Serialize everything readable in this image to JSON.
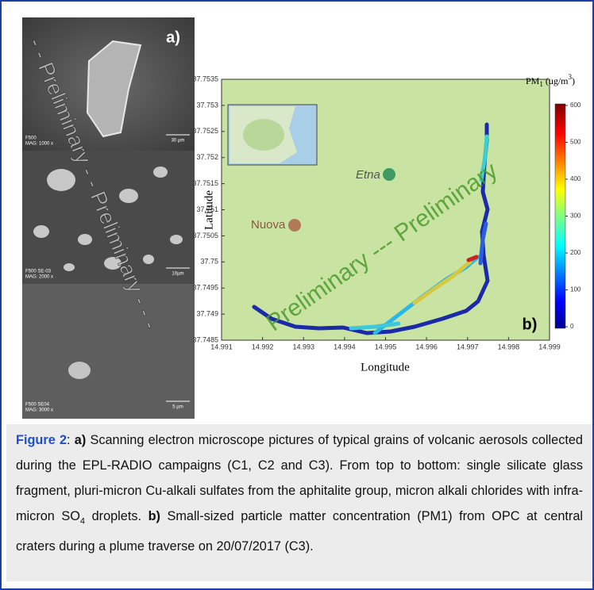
{
  "panel_a": {
    "label": "a)",
    "watermark": "- - Preliminary - - Preliminary - - -",
    "images": [
      {
        "detector": "F500",
        "magnification": "MAG: 1000 x",
        "scale": "30 µm"
      },
      {
        "detector": "F500 SE-03",
        "magnification": "MAG: 2000 x",
        "scale": "10µm"
      },
      {
        "detector": "F500 SE04",
        "magnification": "MAG: 3000 x",
        "scale": "5 µm"
      }
    ]
  },
  "panel_b": {
    "label": "b)",
    "x_label": "Longitude",
    "y_label": "Latitude",
    "yticks": [
      37.7535,
      37.753,
      37.7525,
      37.752,
      37.7515,
      37.751,
      37.7505,
      37.75,
      37.7495,
      37.749,
      37.7485
    ],
    "xticks": [
      14.991,
      14.992,
      14.993,
      14.994,
      14.995,
      14.996,
      14.997,
      14.998,
      14.999
    ],
    "colorbar_title": {
      "text": "PM",
      "sub": "1",
      "unit": " (ug/m",
      "sup": "3",
      "close": ")"
    },
    "colorbar_ticks": [
      600,
      500,
      400,
      300,
      200,
      100,
      0
    ],
    "map_labels": [
      "Etna",
      "Nuova"
    ],
    "watermark": "Preliminary --- Preliminary"
  },
  "caption": {
    "figure_label": "Figure 2",
    "sep": ": ",
    "a_label": "a)",
    "text_a": " Scanning electron microscope pictures of typical grains of volcanic aerosols collected during the EPL-RADIO campaigns (C1, C2 and C3). From top to bottom: single silicate glass fragment, pluri-micron Cu-alkali sulfates from the aphitalite group, micron alkali chlorides with infra-micron SO",
    "subscript": "4",
    "text_a_end": " droplets. ",
    "b_label": "b)",
    "text_b": " Small-sized particle matter concentration (PM1) from OPC at central craters during a plume traverse on 20/07/2017 (C3)."
  }
}
